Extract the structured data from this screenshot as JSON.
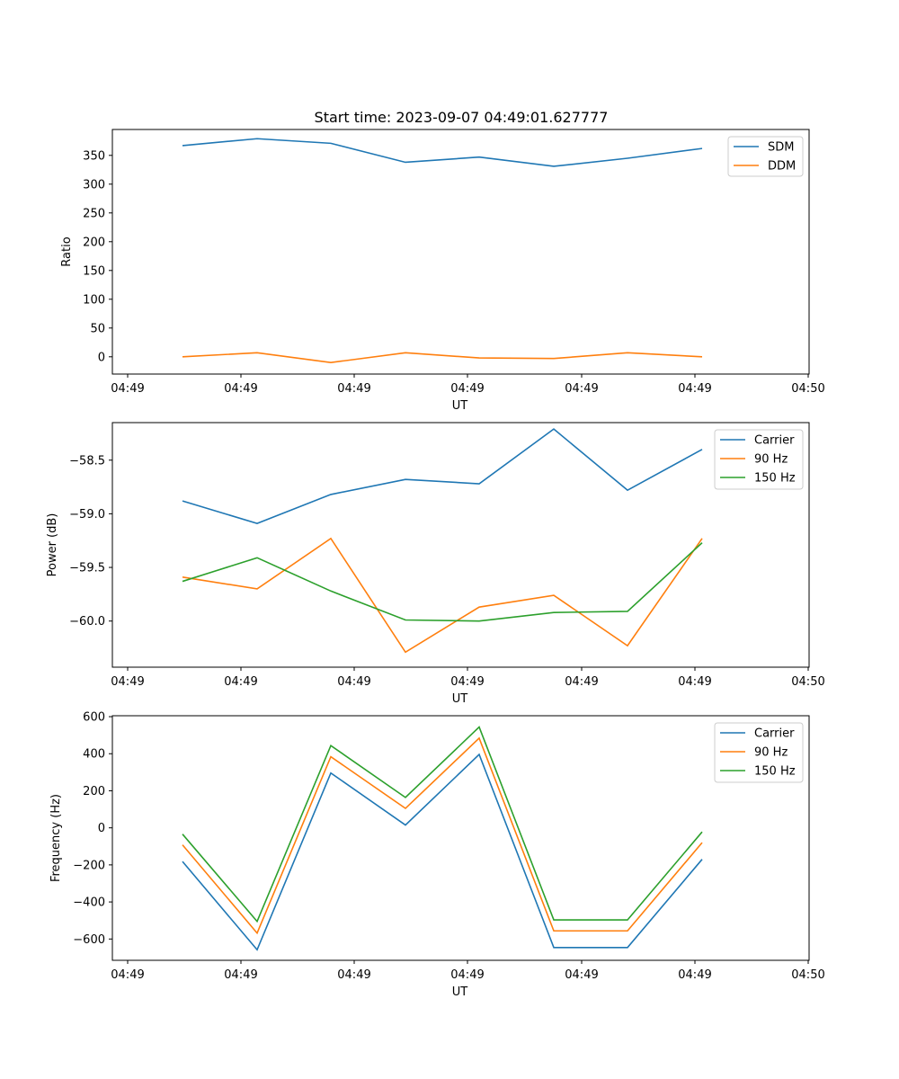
{
  "figure_title": "Start time: 2023-09-07 04:49:01.627777",
  "chart_data": [
    {
      "type": "line",
      "title": "Start time: 2023-09-07 04:49:01.627777",
      "xlabel": "UT",
      "ylabel": "Ratio",
      "x_tick_labels": [
        "04:49",
        "04:49",
        "04:49",
        "04:49",
        "04:49",
        "04:49",
        "04:49"
      ],
      "ylim": [
        -30,
        395
      ],
      "y_ticks": [
        0,
        50,
        100,
        150,
        200,
        250,
        300,
        350
      ],
      "y_tick_labels": [
        "0",
        "50",
        "100",
        "150",
        "200",
        "250",
        "300",
        "350"
      ],
      "legend": "top-right",
      "series": [
        {
          "name": "SDM",
          "color": "#1f77b4",
          "values": [
            367,
            379,
            371,
            338,
            347,
            331,
            345,
            362
          ]
        },
        {
          "name": "DDM",
          "color": "#ff7f0e",
          "values": [
            0,
            7,
            -10,
            7,
            -2,
            -3,
            7,
            0
          ]
        }
      ]
    },
    {
      "type": "line",
      "title": "",
      "xlabel": "UT",
      "ylabel": "Power (dB)",
      "x_tick_labels": [
        "04:49",
        "04:49",
        "04:49",
        "04:49",
        "04:49",
        "04:49",
        "04:49"
      ],
      "ylim": [
        -60.43,
        -58.15
      ],
      "y_ticks": [
        -58.5,
        -59.0,
        -59.5,
        -60.0
      ],
      "y_tick_labels": [
        "−58.5",
        "−59.0",
        "−59.5",
        "−60.0"
      ],
      "legend": "top-right",
      "series": [
        {
          "name": "Carrier",
          "color": "#1f77b4",
          "values": [
            -58.88,
            -59.09,
            -58.82,
            -58.68,
            -58.72,
            -58.21,
            -58.78,
            -58.4
          ]
        },
        {
          "name": "90 Hz",
          "color": "#ff7f0e",
          "values": [
            -59.59,
            -59.7,
            -59.23,
            -60.29,
            -59.87,
            -59.76,
            -60.23,
            -59.23
          ]
        },
        {
          "name": "150 Hz",
          "color": "#2ca02c",
          "values": [
            -59.63,
            -59.41,
            -59.72,
            -59.99,
            -60.0,
            -59.92,
            -59.91,
            -59.27
          ]
        }
      ]
    },
    {
      "type": "line",
      "title": "",
      "xlabel": "UT",
      "ylabel": "Frequency (Hz)",
      "x_tick_labels": [
        "04:49",
        "04:49",
        "04:49",
        "04:49",
        "04:49",
        "04:49",
        "04:49"
      ],
      "ylim": [
        -715,
        605
      ],
      "y_ticks": [
        600,
        400,
        200,
        0,
        -200,
        -400,
        -600
      ],
      "y_tick_labels": [
        "600",
        "400",
        "200",
        "0",
        "−200",
        "−400",
        "−600"
      ],
      "legend": "top-right",
      "series": [
        {
          "name": "Carrier",
          "color": "#1f77b4",
          "values": [
            -182,
            -658,
            296,
            15,
            396,
            -646,
            -646,
            -170
          ]
        },
        {
          "name": "90 Hz",
          "color": "#ff7f0e",
          "values": [
            -92,
            -568,
            384,
            105,
            484,
            -556,
            -556,
            -80
          ]
        },
        {
          "name": "150 Hz",
          "color": "#2ca02c",
          "values": [
            -34,
            -505,
            444,
            164,
            544,
            -497,
            -497,
            -22
          ]
        }
      ]
    }
  ],
  "x_axis_last_tick_label": "04:50"
}
